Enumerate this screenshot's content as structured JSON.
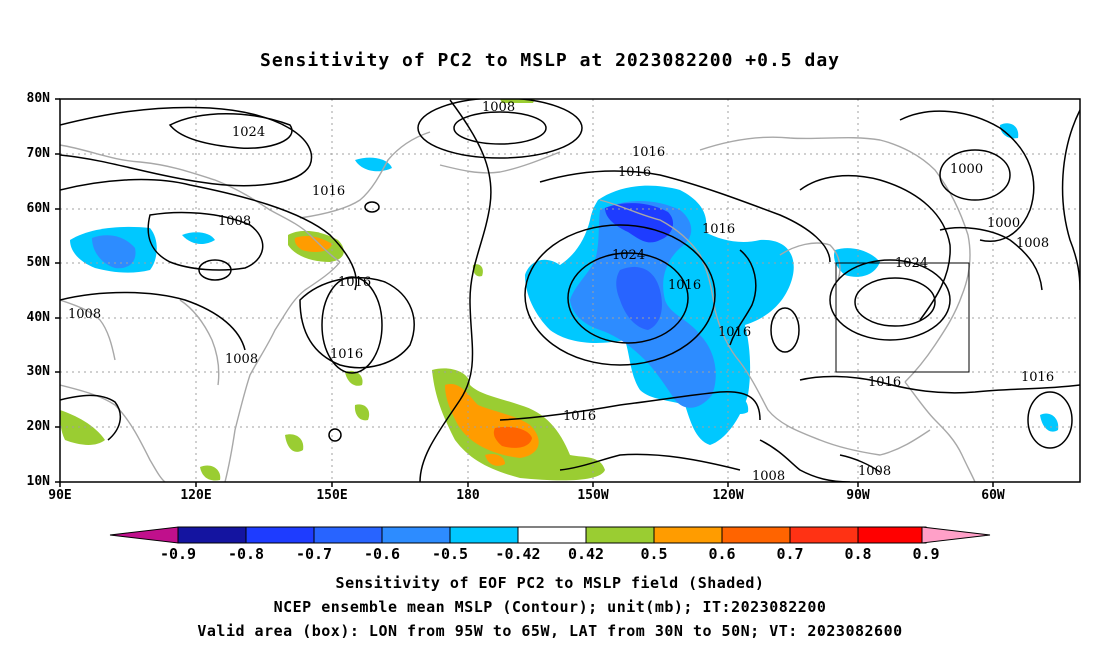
{
  "title": "Sensitivity of PC2 to MSLP at 2023082200 +0.5 day",
  "map": {
    "lat_labels": [
      "80N",
      "70N",
      "60N",
      "50N",
      "40N",
      "30N",
      "20N",
      "10N"
    ],
    "lon_labels": [
      "90E",
      "120E",
      "150E",
      "180",
      "150W",
      "120W",
      "90W",
      "60W"
    ],
    "contour_labels": [
      "1008",
      "1024",
      "1016",
      "1016",
      "1000",
      "1016",
      "1008",
      "1024",
      "1016",
      "1000",
      "1008",
      "1016",
      "1024",
      "1008",
      "1016",
      "1016",
      "1008",
      "1016",
      "1016",
      "1016",
      "1008",
      "1008"
    ],
    "valid_box": {
      "lon_w": -95,
      "lon_e": -65,
      "lat_s": 30,
      "lat_n": 50
    }
  },
  "colorbar": {
    "labels": [
      "-0.9",
      "-0.8",
      "-0.7",
      "-0.6",
      "-0.5",
      "-0.42",
      "0.42",
      "0.5",
      "0.6",
      "0.7",
      "0.8",
      "0.9"
    ],
    "colors": [
      "#1414a0",
      "#1e3cff",
      "#2864ff",
      "#2d8cff",
      "#00c8ff",
      "#ffffff",
      "#9acd32",
      "#ff9c00",
      "#ff6400",
      "#ff3214",
      "#ff0000"
    ],
    "low_arrow_color": "#c0108c",
    "high_arrow_color": "#ffa0c8"
  },
  "captions": [
    "Sensitivity of EOF PC2 to MSLP field (Shaded)",
    "NCEP ensemble mean MSLP (Contour); unit(mb); IT:2023082200",
    "Valid area (box): LON from 95W to 65W, LAT from 30N to 50N; VT: 2023082600"
  ]
}
